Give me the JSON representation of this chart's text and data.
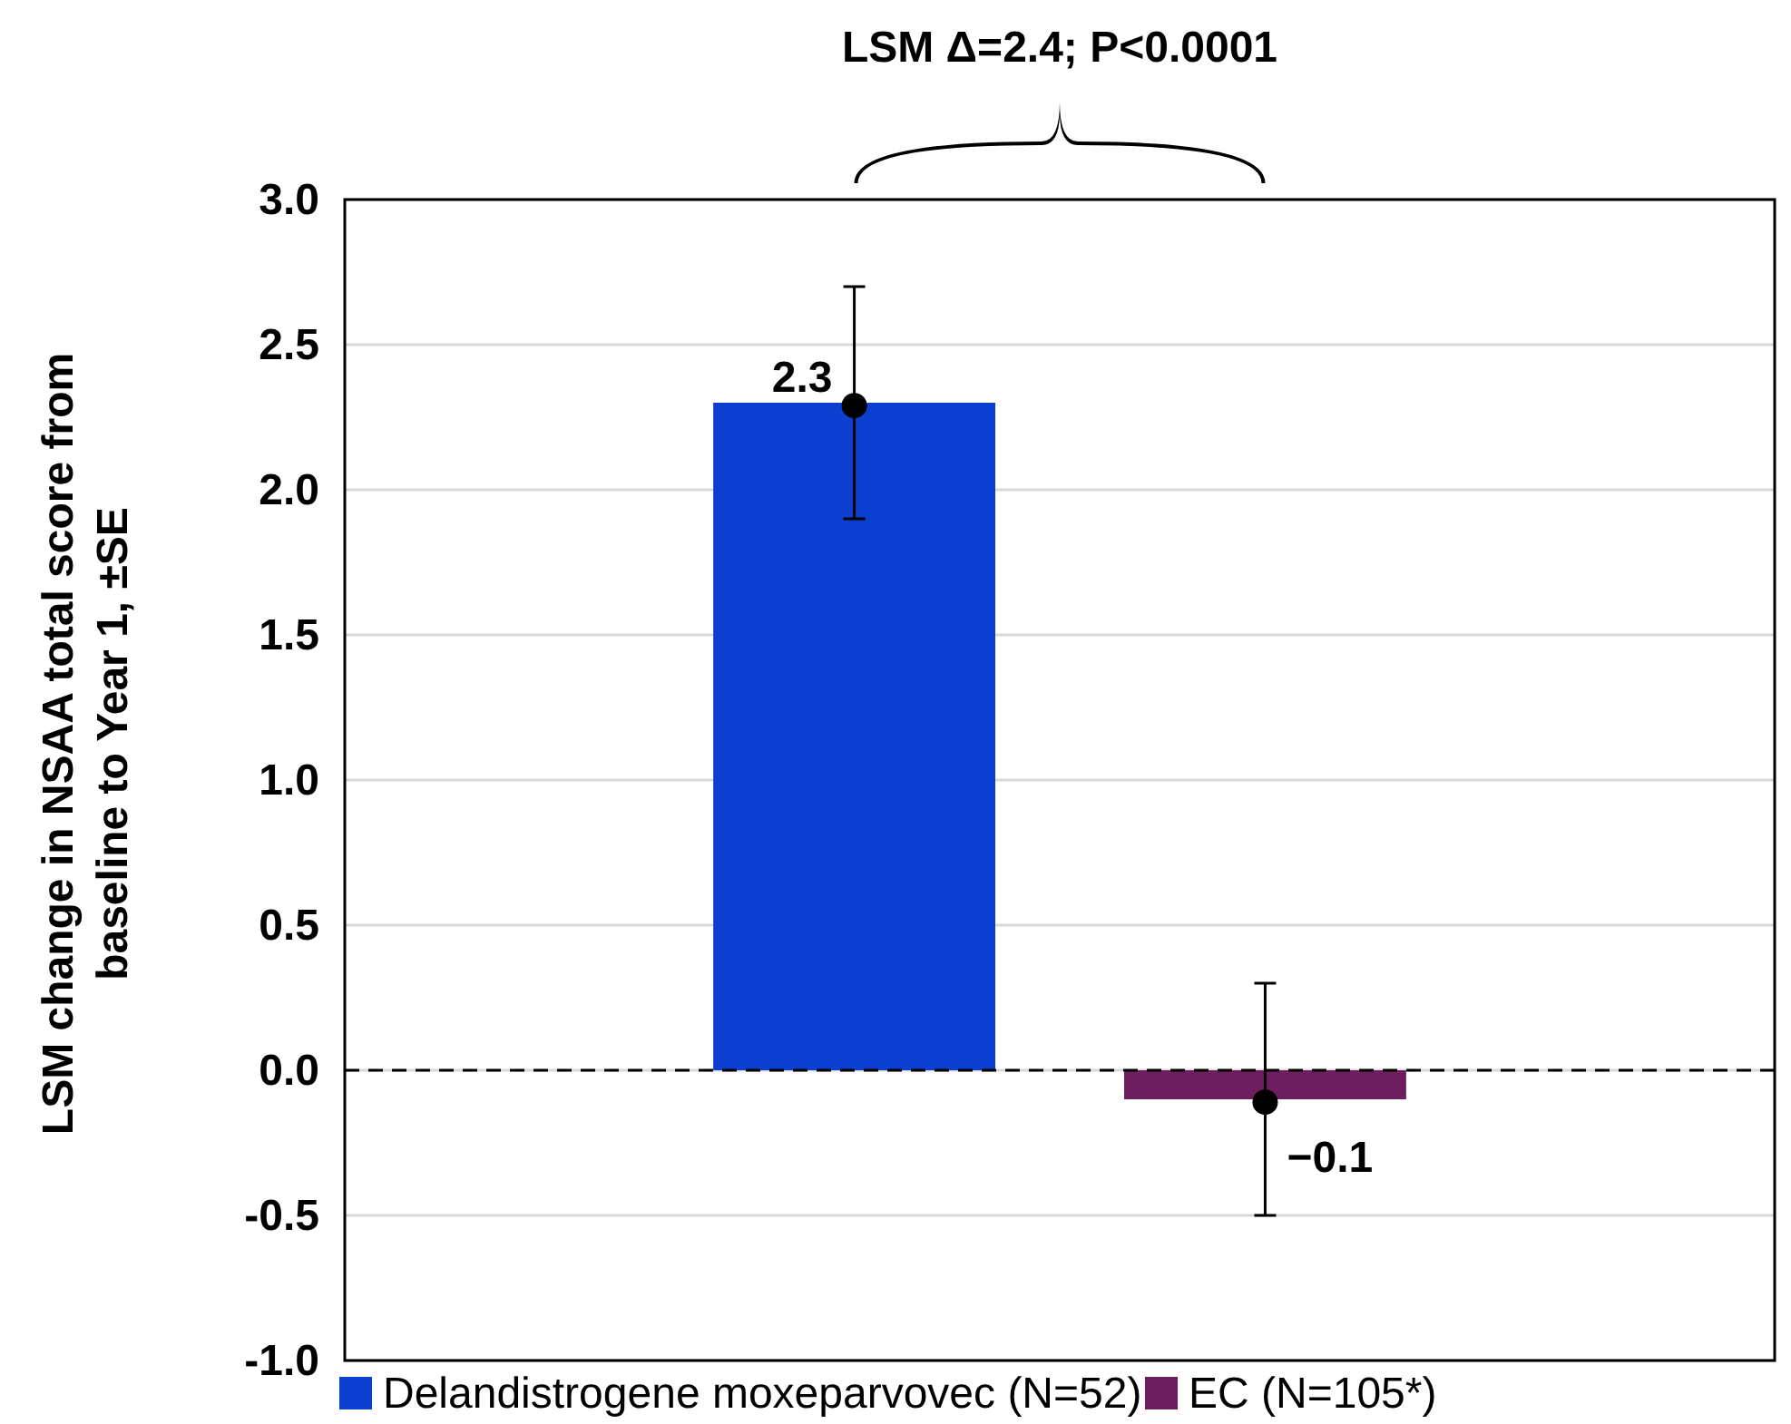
{
  "chart_data": {
    "type": "bar",
    "title": "LSM Δ=2.4; P<0.0001",
    "ylabel": "LSM change in NSAA total score from baseline to Year 1, ±SE",
    "categories": [
      null,
      null
    ],
    "stacked": true,
    "series": [
      {
        "name": "Delandistrogene moxeparvovec (N=52)",
        "color": "#0b3fcf",
        "values": [
          2.3,
          null
        ],
        "errors": [
          0.4,
          null
        ],
        "value_labels": [
          "2.3",
          null
        ]
      },
      {
        "name": "EC (N=105*)",
        "color": "#6b1d5e",
        "values": [
          null,
          -0.1
        ],
        "errors": [
          null,
          0.4
        ],
        "value_labels": [
          null,
          "−0.1"
        ]
      },
      {
        "type": "scatter",
        "color": "#000000",
        "values": [
          2.29,
          -0.11
        ]
      }
    ],
    "ylim": [
      -1,
      3
    ],
    "yticks": [
      {
        "value": -1,
        "label": "-1.0"
      },
      {
        "value": -0.5,
        "label": "-0.5"
      },
      {
        "value": 0,
        "label": "0.0"
      },
      {
        "value": 0.5,
        "label": "0.5"
      },
      {
        "value": 1,
        "label": "1.0"
      },
      {
        "value": 1.5,
        "label": "1.5"
      },
      {
        "value": 2,
        "label": "2.0"
      },
      {
        "value": 2.5,
        "label": "2.5"
      },
      {
        "value": 3,
        "label": "3.0"
      }
    ],
    "grid": "y",
    "legend": "bottom",
    "marker": "circle",
    "ref_lines": [
      {
        "axis": "y",
        "value": 0,
        "line_style": "dashed",
        "color": "#000000"
      }
    ]
  }
}
